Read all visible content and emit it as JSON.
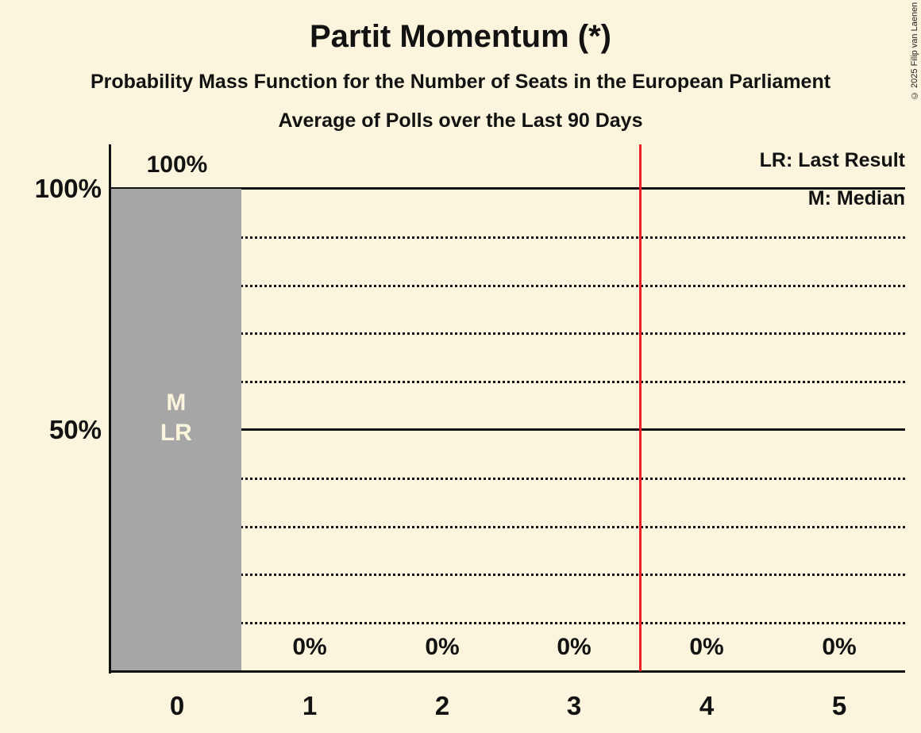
{
  "header": {
    "title": "Partit Momentum (*)",
    "subtitle": "Probability Mass Function for the Number of Seats in the European Parliament",
    "subsubtitle": "Average of Polls over the Last 90 Days"
  },
  "legend": {
    "last_result_label": "LR: Last Result",
    "median_label": "M: Median"
  },
  "copyright": "© 2025 Filip van Laenen",
  "chart_data": {
    "type": "bar",
    "title": "Partit Momentum (*)",
    "categories": [
      "0",
      "1",
      "2",
      "3",
      "4",
      "5"
    ],
    "values": [
      100,
      0,
      0,
      0,
      0,
      0
    ],
    "bar_labels": [
      "100%",
      "0%",
      "0%",
      "0%",
      "0%",
      "0%"
    ],
    "xlabel": "",
    "ylabel": "",
    "ylim": [
      0,
      100
    ],
    "grid": true,
    "legend_position": "top-right",
    "y_axis_labels": [
      {
        "value": 100,
        "label": "100%"
      },
      {
        "value": 50,
        "label": "50%"
      }
    ],
    "solid_gridlines": [
      100,
      50
    ],
    "dotted_gridlines": [
      90,
      80,
      70,
      60,
      40,
      30,
      20,
      10
    ],
    "annotations": {
      "median_category": "0",
      "median_marker": "M",
      "last_result_marker": "LR",
      "last_result_line_x": 3.5
    },
    "colors": {
      "background": "#FAF5DC",
      "bar": "#A6A6A6",
      "bar_marker_text": "#FAF5DC",
      "text": "#121212",
      "last_result_line": "#EB2128",
      "gridline": "#111111"
    }
  }
}
